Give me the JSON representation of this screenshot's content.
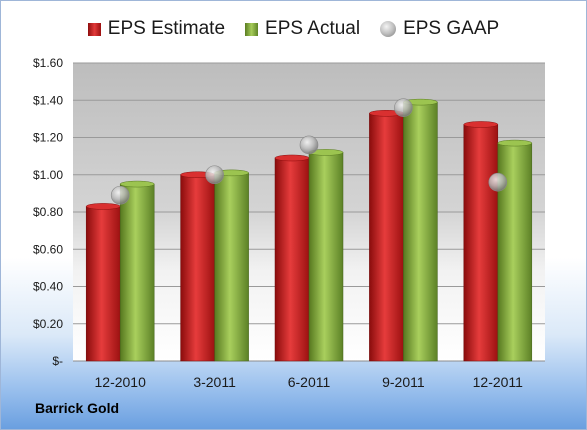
{
  "company": "Barrick Gold",
  "chart_data": {
    "type": "bar",
    "categories": [
      "12-2010",
      "3-2011",
      "6-2011",
      "9-2011",
      "12-2011"
    ],
    "series": [
      {
        "name": "EPS Estimate",
        "kind": "bar",
        "color": "#cc1f1f",
        "values": [
          0.83,
          1.0,
          1.09,
          1.33,
          1.27
        ]
      },
      {
        "name": "EPS Actual",
        "kind": "bar",
        "color": "#8fb446",
        "values": [
          0.95,
          1.01,
          1.12,
          1.39,
          1.17
        ]
      },
      {
        "name": "EPS GAAP",
        "kind": "marker",
        "color": "#a8a8a8",
        "values": [
          0.89,
          1.0,
          1.16,
          1.36,
          0.96
        ]
      }
    ],
    "yticks": [
      "$-",
      "$0.20",
      "$0.40",
      "$0.60",
      "$0.80",
      "$1.00",
      "$1.20",
      "$1.40",
      "$1.60"
    ],
    "ylim": [
      0,
      1.6
    ],
    "grid": true,
    "legend_position": "top"
  }
}
